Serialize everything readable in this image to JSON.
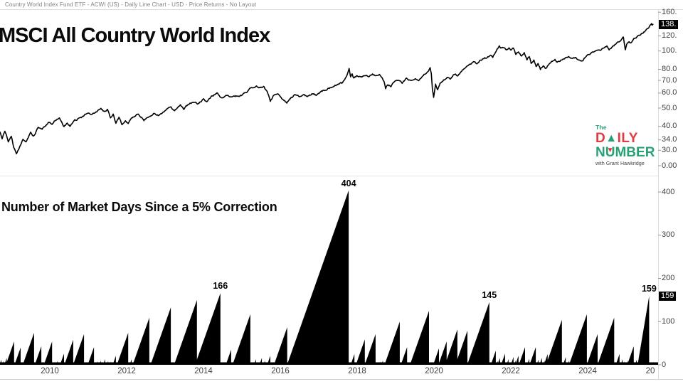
{
  "window": {
    "header": "Country World Index Fund ETF - ACWI (US) - Daily Line Chart - USD - Price Returns - No Layout"
  },
  "colors": {
    "line": "#000000",
    "fill": "#000000",
    "badge_bg": "#000000",
    "badge_text": "#ffffff",
    "logo_red": "#e03b41",
    "logo_green": "#28a275",
    "separator": "#dcdcdc",
    "axis_text": "#3d3d3d"
  },
  "logo": {
    "the": "The",
    "daily_d": "D",
    "daily_rest": "ILY",
    "number_n": "N",
    "number_u": "U",
    "number_rest": "MBER",
    "up_arrow": "▲",
    "down_arrow": "▼",
    "tagline": "with Grant Hawkridge"
  },
  "top_pane": {
    "title": "MSCI All Country World Index",
    "badge": {
      "label": "138.",
      "value": 138
    },
    "axis_ticks": [
      {
        "label": "160.",
        "v": 160
      },
      {
        "label": "120.",
        "v": 120
      },
      {
        "label": "100.",
        "v": 100
      },
      {
        "label": "80.0",
        "v": 80
      },
      {
        "label": "70.0",
        "v": 70
      },
      {
        "label": "60.0",
        "v": 60
      },
      {
        "label": "50.0",
        "v": 50
      },
      {
        "label": "40.0",
        "v": 40
      },
      {
        "label": "34.0",
        "v": 34
      },
      {
        "label": "30.0",
        "v": 30
      },
      {
        "label": "0.00",
        "v": 0
      }
    ]
  },
  "bottom_pane": {
    "title": "Number of Market Days Since a 5% Correction",
    "badge": {
      "label": "159",
      "value": 159
    },
    "axis_ticks": [
      {
        "label": "400",
        "v": 400
      },
      {
        "label": "300",
        "v": 300
      },
      {
        "label": "200",
        "v": 200
      },
      {
        "label": "100",
        "v": 100
      },
      {
        "label": "0",
        "v": 0
      }
    ]
  },
  "x_axis": {
    "ticks": [
      {
        "label": "2010",
        "yr": 2010
      },
      {
        "label": "2012",
        "yr": 2012
      },
      {
        "label": "2014",
        "yr": 2014
      },
      {
        "label": "2016",
        "yr": 2016
      },
      {
        "label": "2018",
        "yr": 2018
      },
      {
        "label": "2020",
        "yr": 2020
      },
      {
        "label": "2022",
        "yr": 2022
      },
      {
        "label": "2024",
        "yr": 2024
      },
      {
        "label": "20",
        "yr": 2025.63
      }
    ]
  },
  "chart_data": [
    {
      "type": "line",
      "name": "MSCI All Country World Index (ACWI US) daily price, USD",
      "scale": "log",
      "x_unit": "decimal_year",
      "ylim": [
        28,
        165
      ],
      "last_value": 138,
      "anchors": [
        [
          2008.7,
          37.5
        ],
        [
          2008.76,
          34.5
        ],
        [
          2008.83,
          38.0
        ],
        [
          2008.92,
          33.5
        ],
        [
          2009.0,
          35.5
        ],
        [
          2009.06,
          31.0
        ],
        [
          2009.13,
          28.5
        ],
        [
          2009.22,
          31.5
        ],
        [
          2009.3,
          34.0
        ],
        [
          2009.38,
          33.0
        ],
        [
          2009.5,
          37.0
        ],
        [
          2009.58,
          35.5
        ],
        [
          2009.7,
          39.5
        ],
        [
          2009.8,
          38.5
        ],
        [
          2009.92,
          41.5
        ],
        [
          2010.0,
          42.5
        ],
        [
          2010.06,
          41.0
        ],
        [
          2010.15,
          43.5
        ],
        [
          2010.25,
          44.5
        ],
        [
          2010.37,
          39.8
        ],
        [
          2010.45,
          41.5
        ],
        [
          2010.52,
          40.2
        ],
        [
          2010.65,
          43.0
        ],
        [
          2010.8,
          44.5
        ],
        [
          2010.92,
          46.0
        ],
        [
          2011.0,
          47.0
        ],
        [
          2011.1,
          46.0
        ],
        [
          2011.22,
          48.0
        ],
        [
          2011.33,
          49.8
        ],
        [
          2011.42,
          47.8
        ],
        [
          2011.5,
          49.0
        ],
        [
          2011.58,
          44.0
        ],
        [
          2011.65,
          46.0
        ],
        [
          2011.72,
          41.5
        ],
        [
          2011.8,
          44.5
        ],
        [
          2011.88,
          41.0
        ],
        [
          2011.97,
          43.0
        ],
        [
          2012.04,
          41.3
        ],
        [
          2012.15,
          44.5
        ],
        [
          2012.3,
          46.8
        ],
        [
          2012.45,
          43.2
        ],
        [
          2012.6,
          45.5
        ],
        [
          2012.72,
          47.0
        ],
        [
          2012.82,
          46.0
        ],
        [
          2012.95,
          47.5
        ],
        [
          2013.05,
          49.5
        ],
        [
          2013.15,
          50.5
        ],
        [
          2013.25,
          48.8
        ],
        [
          2013.4,
          51.5
        ],
        [
          2013.48,
          49.3
        ],
        [
          2013.62,
          52.5
        ],
        [
          2013.75,
          53.8
        ],
        [
          2013.85,
          52.8
        ],
        [
          2014.0,
          55.5
        ],
        [
          2014.08,
          54.0
        ],
        [
          2014.2,
          57.5
        ],
        [
          2014.35,
          59.8
        ],
        [
          2014.48,
          56.5
        ],
        [
          2014.62,
          58.8
        ],
        [
          2014.75,
          57.0
        ],
        [
          2014.88,
          58.0
        ],
        [
          2015.0,
          58.5
        ],
        [
          2015.1,
          60.5
        ],
        [
          2015.22,
          63.5
        ],
        [
          2015.38,
          65.5
        ],
        [
          2015.48,
          63.8
        ],
        [
          2015.58,
          64.8
        ],
        [
          2015.68,
          59.5
        ],
        [
          2015.74,
          54.2
        ],
        [
          2015.82,
          58.0
        ],
        [
          2015.92,
          60.0
        ],
        [
          2016.0,
          57.5
        ],
        [
          2016.08,
          55.0
        ],
        [
          2016.17,
          53.2
        ],
        [
          2016.28,
          57.0
        ],
        [
          2016.4,
          58.8
        ],
        [
          2016.5,
          57.2
        ],
        [
          2016.6,
          59.0
        ],
        [
          2016.7,
          57.8
        ],
        [
          2016.82,
          59.5
        ],
        [
          2016.95,
          58.5
        ],
        [
          2017.05,
          61.0
        ],
        [
          2017.2,
          63.0
        ],
        [
          2017.35,
          64.5
        ],
        [
          2017.5,
          66.5
        ],
        [
          2017.62,
          67.8
        ],
        [
          2017.72,
          72.5
        ],
        [
          2017.76,
          76.5
        ],
        [
          2017.79,
          80.0
        ],
        [
          2017.83,
          73.5
        ],
        [
          2017.87,
          75.5
        ],
        [
          2017.91,
          71.8
        ],
        [
          2018.0,
          74.0
        ],
        [
          2018.1,
          73.0
        ],
        [
          2018.2,
          74.8
        ],
        [
          2018.3,
          73.5
        ],
        [
          2018.4,
          75.2
        ],
        [
          2018.5,
          74.0
        ],
        [
          2018.58,
          75.5
        ],
        [
          2018.64,
          73.0
        ],
        [
          2018.7,
          69.0
        ],
        [
          2018.74,
          63.2
        ],
        [
          2018.8,
          66.5
        ],
        [
          2018.88,
          65.0
        ],
        [
          2018.95,
          68.0
        ],
        [
          2019.07,
          70.8
        ],
        [
          2019.17,
          68.2
        ],
        [
          2019.28,
          71.5
        ],
        [
          2019.38,
          69.8
        ],
        [
          2019.5,
          72.0
        ],
        [
          2019.6,
          70.3
        ],
        [
          2019.72,
          74.5
        ],
        [
          2019.8,
          76.5
        ],
        [
          2019.86,
          79.0
        ],
        [
          2019.9,
          81.3
        ],
        [
          2019.93,
          76.0
        ],
        [
          2019.96,
          63.0
        ],
        [
          2019.99,
          57.3
        ],
        [
          2020.04,
          66.5
        ],
        [
          2020.09,
          62.8
        ],
        [
          2020.16,
          67.5
        ],
        [
          2020.25,
          70.2
        ],
        [
          2020.34,
          73.0
        ],
        [
          2020.42,
          71.0
        ],
        [
          2020.5,
          74.5
        ],
        [
          2020.56,
          76.2
        ],
        [
          2020.62,
          74.0
        ],
        [
          2020.72,
          78.5
        ],
        [
          2020.8,
          81.0
        ],
        [
          2020.88,
          84.0
        ],
        [
          2020.95,
          85.5
        ],
        [
          2021.05,
          87.5
        ],
        [
          2021.12,
          85.8
        ],
        [
          2021.22,
          89.5
        ],
        [
          2021.32,
          91.5
        ],
        [
          2021.4,
          93.0
        ],
        [
          2021.47,
          95.0
        ],
        [
          2021.53,
          93.2
        ],
        [
          2021.58,
          96.5
        ],
        [
          2021.63,
          101.0
        ],
        [
          2021.7,
          105.5
        ],
        [
          2021.75,
          103.5
        ],
        [
          2021.82,
          105.0
        ],
        [
          2021.88,
          102.0
        ],
        [
          2021.95,
          104.5
        ],
        [
          2022.0,
          101.0
        ],
        [
          2022.06,
          104.0
        ],
        [
          2022.13,
          96.5
        ],
        [
          2022.2,
          99.5
        ],
        [
          2022.28,
          93.5
        ],
        [
          2022.35,
          97.0
        ],
        [
          2022.42,
          90.0
        ],
        [
          2022.48,
          94.0
        ],
        [
          2022.53,
          85.5
        ],
        [
          2022.6,
          89.5
        ],
        [
          2022.66,
          83.0
        ],
        [
          2022.71,
          86.5
        ],
        [
          2022.77,
          80.2
        ],
        [
          2022.84,
          83.5
        ],
        [
          2022.91,
          81.0
        ],
        [
          2023.0,
          85.0
        ],
        [
          2023.08,
          88.5
        ],
        [
          2023.15,
          90.0
        ],
        [
          2023.22,
          87.8
        ],
        [
          2023.32,
          89.8
        ],
        [
          2023.42,
          91.8
        ],
        [
          2023.52,
          93.2
        ],
        [
          2023.6,
          91.0
        ],
        [
          2023.68,
          92.5
        ],
        [
          2023.76,
          88.8
        ],
        [
          2023.85,
          87.8
        ],
        [
          2023.92,
          91.5
        ],
        [
          2024.0,
          94.5
        ],
        [
          2024.08,
          96.8
        ],
        [
          2024.17,
          99.5
        ],
        [
          2024.25,
          101.8
        ],
        [
          2024.33,
          100.2
        ],
        [
          2024.42,
          103.5
        ],
        [
          2024.5,
          105.8
        ],
        [
          2024.56,
          100.8
        ],
        [
          2024.63,
          104.5
        ],
        [
          2024.7,
          107.5
        ],
        [
          2024.76,
          110.0
        ],
        [
          2024.81,
          112.0
        ],
        [
          2024.86,
          114.5
        ],
        [
          2024.9,
          117.0
        ],
        [
          2024.93,
          118.6
        ],
        [
          2024.96,
          108.0
        ],
        [
          2024.98,
          101.5
        ],
        [
          2025.03,
          109.5
        ],
        [
          2025.08,
          112.0
        ],
        [
          2025.13,
          110.0
        ],
        [
          2025.2,
          115.5
        ],
        [
          2025.28,
          118.5
        ],
        [
          2025.36,
          121.5
        ],
        [
          2025.44,
          125.0
        ],
        [
          2025.52,
          129.0
        ],
        [
          2025.58,
          133.0
        ],
        [
          2025.63,
          136.5
        ],
        [
          2025.66,
          139.0
        ],
        [
          2025.68,
          137.2
        ],
        [
          2025.7,
          138.2
        ]
      ]
    },
    {
      "type": "area",
      "name": "Number of market days since a 5% correction",
      "scale": "linear",
      "x_unit": "decimal_year",
      "ylim": [
        0,
        420
      ],
      "last_value": 159,
      "triangles": [
        [
          2008.74,
          12
        ],
        [
          2008.8,
          9
        ],
        [
          2008.88,
          16
        ],
        [
          2008.96,
          12
        ],
        [
          2009.07,
          54
        ],
        [
          2009.24,
          40
        ],
        [
          2009.36,
          12
        ],
        [
          2009.59,
          74
        ],
        [
          2009.78,
          43
        ],
        [
          2009.9,
          10
        ],
        [
          2010.06,
          54
        ],
        [
          2010.2,
          9
        ],
        [
          2010.37,
          26
        ],
        [
          2010.61,
          58
        ],
        [
          2010.72,
          10
        ],
        [
          2010.89,
          71
        ],
        [
          2011.15,
          41
        ],
        [
          2011.25,
          8
        ],
        [
          2011.33,
          10
        ],
        [
          2011.44,
          13
        ],
        [
          2011.52,
          9
        ],
        [
          2011.58,
          8
        ],
        [
          2011.72,
          21
        ],
        [
          2011.85,
          12
        ],
        [
          2012.04,
          74
        ],
        [
          2012.13,
          13
        ],
        [
          2012.22,
          8
        ],
        [
          2012.59,
          109
        ],
        [
          2012.7,
          10
        ],
        [
          2013.15,
          133
        ],
        [
          2013.83,
          150
        ],
        [
          2014.44,
          166
        ],
        [
          2014.72,
          35
        ],
        [
          2015.22,
          117
        ],
        [
          2015.37,
          13
        ],
        [
          2015.52,
          16
        ],
        [
          2015.6,
          10
        ],
        [
          2015.74,
          21
        ],
        [
          2016.18,
          87
        ],
        [
          2017.78,
          404
        ],
        [
          2017.93,
          25
        ],
        [
          2018.2,
          59
        ],
        [
          2018.48,
          71
        ],
        [
          2018.6,
          8
        ],
        [
          2018.67,
          10
        ],
        [
          2019.11,
          100
        ],
        [
          2019.3,
          41
        ],
        [
          2019.87,
          125
        ],
        [
          2020.13,
          38
        ],
        [
          2020.2,
          10
        ],
        [
          2020.33,
          54
        ],
        [
          2020.44,
          12
        ],
        [
          2020.61,
          82
        ],
        [
          2020.87,
          79
        ],
        [
          2021.44,
          145
        ],
        [
          2021.61,
          33
        ],
        [
          2021.67,
          10
        ],
        [
          2021.72,
          16
        ],
        [
          2021.85,
          26
        ],
        [
          2021.94,
          13
        ],
        [
          2022.07,
          18
        ],
        [
          2022.13,
          10
        ],
        [
          2022.2,
          21
        ],
        [
          2022.28,
          12
        ],
        [
          2022.37,
          41
        ],
        [
          2022.48,
          14
        ],
        [
          2022.58,
          10
        ],
        [
          2022.65,
          41
        ],
        [
          2022.72,
          12
        ],
        [
          2022.81,
          16
        ],
        [
          2022.88,
          10
        ],
        [
          2022.96,
          25
        ],
        [
          2023.1,
          8
        ],
        [
          2023.33,
          104
        ],
        [
          2023.43,
          18
        ],
        [
          2023.52,
          10
        ],
        [
          2023.98,
          117
        ],
        [
          2024.26,
          71
        ],
        [
          2024.69,
          109
        ],
        [
          2024.78,
          10
        ],
        [
          2024.83,
          25
        ],
        [
          2024.91,
          13
        ],
        [
          2024.96,
          8
        ],
        [
          2025.05,
          10
        ],
        [
          2025.2,
          43
        ],
        [
          2025.28,
          12
        ],
        [
          2025.6,
          159,
          2025.3
        ]
      ],
      "labeled_peaks": [
        {
          "year": 2014.44,
          "days": 166,
          "label": "166"
        },
        {
          "year": 2017.78,
          "days": 404,
          "label": "404"
        },
        {
          "year": 2021.44,
          "days": 145,
          "label": "145"
        },
        {
          "year": 2025.6,
          "days": 159,
          "label": "159"
        }
      ]
    }
  ]
}
